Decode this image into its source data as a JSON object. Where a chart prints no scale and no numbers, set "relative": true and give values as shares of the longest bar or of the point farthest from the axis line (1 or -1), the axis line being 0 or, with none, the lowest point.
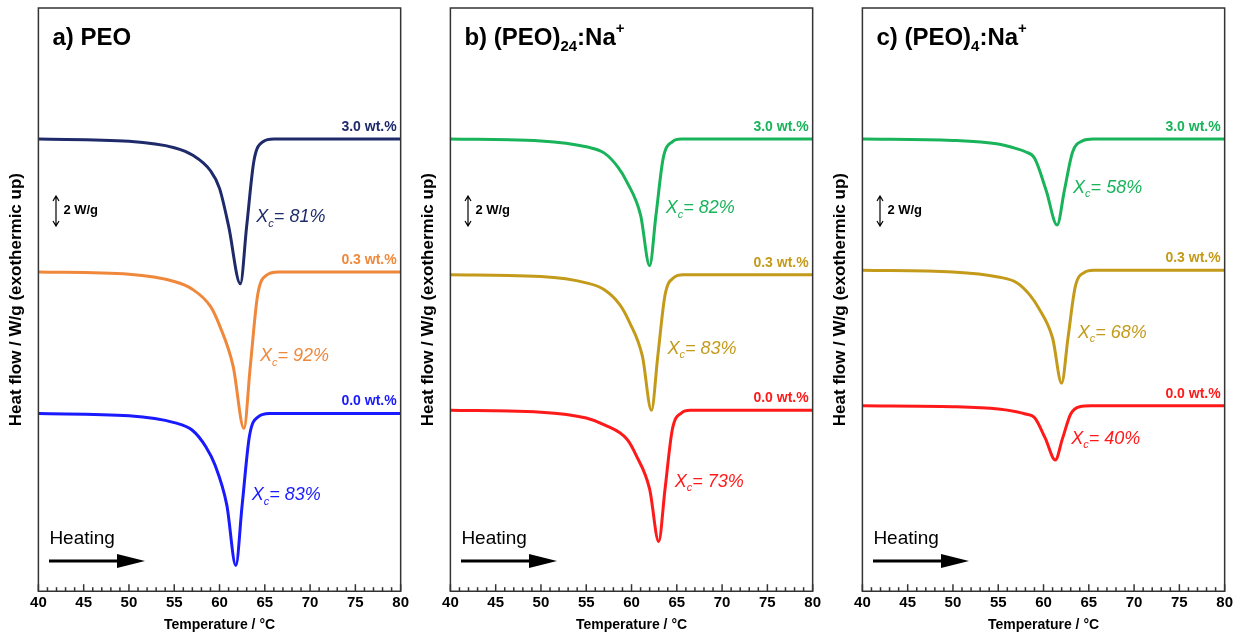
{
  "chart_data": [
    {
      "type": "line",
      "title": "a) PEO",
      "xlabel": "Temperature / °C",
      "ylabel": "Heat flow / W/g (exothermic up)",
      "relative": true,
      "xlim": [
        40,
        80
      ],
      "xticks": [
        40,
        {
          "value": 41,
          "label": null
        },
        {
          "value": 42,
          "label": null
        },
        {
          "value": 43,
          "label": null
        },
        {
          "value": 44,
          "label": null
        },
        45,
        {
          "value": 46,
          "label": null
        },
        {
          "value": 47,
          "label": null
        },
        {
          "value": 48,
          "label": null
        },
        {
          "value": 49,
          "label": null
        },
        50,
        {
          "value": 51,
          "label": null
        },
        {
          "value": 52,
          "label": null
        },
        {
          "value": 53,
          "label": null
        },
        {
          "value": 54,
          "label": null
        },
        55,
        {
          "value": 56,
          "label": null
        },
        {
          "value": 57,
          "label": null
        },
        {
          "value": 58,
          "label": null
        },
        {
          "value": 59,
          "label": null
        },
        60,
        {
          "value": 61,
          "label": null
        },
        {
          "value": 62,
          "label": null
        },
        {
          "value": 63,
          "label": null
        },
        {
          "value": 64,
          "label": null
        },
        65,
        {
          "value": 66,
          "label": null
        },
        {
          "value": 67,
          "label": null
        },
        {
          "value": 68,
          "label": null
        },
        {
          "value": 69,
          "label": null
        },
        70,
        {
          "value": 71,
          "label": null
        },
        {
          "value": 72,
          "label": null
        },
        {
          "value": 73,
          "label": null
        },
        {
          "value": 74,
          "label": null
        },
        75,
        {
          "value": 76,
          "label": null
        },
        {
          "value": 77,
          "label": null
        },
        {
          "value": 78,
          "label": null
        },
        {
          "value": 79,
          "label": null
        },
        80
      ],
      "series": [
        {
          "name": "3.0 wt.%",
          "color": "#1f2a6b",
          "x": [
            40,
            50,
            55,
            57,
            59,
            60,
            61,
            62.3,
            63,
            63.8,
            64.8,
            66,
            80
          ],
          "values": [
            1,
            0.995,
            0.981,
            0.965,
            0.93,
            0.891,
            0.808,
            0.68,
            0.808,
            0.952,
            0.994,
            1,
            1
          ]
        },
        {
          "name": "0.3 wt.%",
          "color": "#f0883c",
          "x": [
            40,
            50,
            55,
            57,
            59,
            60,
            61.5,
            62.7,
            63.4,
            64.2,
            65.2,
            66.5,
            80
          ],
          "values": [
            0.706,
            0.701,
            0.685,
            0.668,
            0.63,
            0.588,
            0.498,
            0.36,
            0.498,
            0.654,
            0.699,
            0.706,
            0.706
          ]
        },
        {
          "name": "0.0 wt.%",
          "color": "#1a1aff",
          "x": [
            40,
            50,
            55,
            57,
            58.5,
            59.5,
            60.8,
            61.8,
            62.5,
            63.3,
            64.3,
            65.5,
            80
          ],
          "values": [
            0.393,
            0.388,
            0.373,
            0.356,
            0.319,
            0.279,
            0.191,
            0.057,
            0.191,
            0.343,
            0.386,
            0.393,
            0.393
          ]
        }
      ],
      "annotations": [
        "X$_{c}$= 81%",
        "X$_{c}$= 92%",
        "X$_{c}$= 83%",
        "2 W/g",
        "Heating"
      ]
    },
    {
      "type": "line",
      "title": "b) (PEO)$_{24}$:Na$^{+}$",
      "xlabel": "Temperature / °C",
      "ylabel": "Heat flow / W/g (exothermic up)",
      "relative": true,
      "xlim": [
        40,
        80
      ],
      "xticks": [
        40,
        {
          "value": 41,
          "label": null
        },
        {
          "value": 42,
          "label": null
        },
        {
          "value": 43,
          "label": null
        },
        {
          "value": 44,
          "label": null
        },
        45,
        {
          "value": 46,
          "label": null
        },
        {
          "value": 47,
          "label": null
        },
        {
          "value": 48,
          "label": null
        },
        {
          "value": 49,
          "label": null
        },
        50,
        {
          "value": 51,
          "label": null
        },
        {
          "value": 52,
          "label": null
        },
        {
          "value": 53,
          "label": null
        },
        {
          "value": 54,
          "label": null
        },
        55,
        {
          "value": 56,
          "label": null
        },
        {
          "value": 57,
          "label": null
        },
        {
          "value": 58,
          "label": null
        },
        {
          "value": 59,
          "label": null
        },
        60,
        {
          "value": 61,
          "label": null
        },
        {
          "value": 62,
          "label": null
        },
        {
          "value": 63,
          "label": null
        },
        {
          "value": 64,
          "label": null
        },
        65,
        {
          "value": 66,
          "label": null
        },
        {
          "value": 67,
          "label": null
        },
        {
          "value": 68,
          "label": null
        },
        {
          "value": 69,
          "label": null
        },
        70,
        {
          "value": 71,
          "label": null
        },
        {
          "value": 72,
          "label": null
        },
        {
          "value": 73,
          "label": null
        },
        {
          "value": 74,
          "label": null
        },
        75,
        {
          "value": 76,
          "label": null
        },
        {
          "value": 77,
          "label": null
        },
        {
          "value": 78,
          "label": null
        },
        {
          "value": 79,
          "label": null
        },
        80
      ],
      "series": [
        {
          "name": "3.0 wt.%",
          "color": "#19b35a",
          "x": [
            40,
            50,
            55,
            57,
            58.5,
            59.5,
            61,
            62,
            62.7,
            63.5,
            64.5,
            65.5,
            80
          ],
          "values": [
            1,
            0.996,
            0.983,
            0.969,
            0.938,
            0.905,
            0.832,
            0.72,
            0.832,
            0.958,
            0.994,
            1,
            1
          ]
        },
        {
          "name": "0.3 wt.%",
          "color": "#c49a1a",
          "x": [
            40,
            50,
            55,
            57,
            58.7,
            59.7,
            61.2,
            62.2,
            62.9,
            63.7,
            64.7,
            65.7,
            80
          ],
          "values": [
            0.7,
            0.696,
            0.682,
            0.667,
            0.634,
            0.598,
            0.52,
            0.4,
            0.52,
            0.655,
            0.694,
            0.7,
            0.7
          ]
        },
        {
          "name": "0.0 wt.%",
          "color": "#ff1a1a",
          "x": [
            40,
            50,
            55,
            57,
            59.5,
            60.5,
            62,
            63,
            63.7,
            64.5,
            65.5,
            66.5,
            80
          ],
          "values": [
            0.4,
            0.396,
            0.383,
            0.368,
            0.336,
            0.301,
            0.226,
            0.11,
            0.226,
            0.357,
            0.394,
            0.4,
            0.4
          ]
        }
      ],
      "annotations": [
        "X$_{c}$= 82%",
        "X$_{c}$= 83%",
        "X$_{c}$= 73%",
        "2 W/g",
        "Heating"
      ]
    },
    {
      "type": "line",
      "title": "c) (PEO)$_{4}$:Na$^{+}$",
      "xlabel": "Temperature / °C",
      "ylabel": "Heat flow / W/g (exothermic up)",
      "relative": true,
      "xlim": [
        40,
        80
      ],
      "xticks": [
        40,
        {
          "value": 41,
          "label": null
        },
        {
          "value": 42,
          "label": null
        },
        {
          "value": 43,
          "label": null
        },
        {
          "value": 44,
          "label": null
        },
        45,
        {
          "value": 46,
          "label": null
        },
        {
          "value": 47,
          "label": null
        },
        {
          "value": 48,
          "label": null
        },
        {
          "value": 49,
          "label": null
        },
        50,
        {
          "value": 51,
          "label": null
        },
        {
          "value": 52,
          "label": null
        },
        {
          "value": 53,
          "label": null
        },
        {
          "value": 54,
          "label": null
        },
        55,
        {
          "value": 56,
          "label": null
        },
        {
          "value": 57,
          "label": null
        },
        {
          "value": 58,
          "label": null
        },
        {
          "value": 59,
          "label": null
        },
        60,
        {
          "value": 61,
          "label": null
        },
        {
          "value": 62,
          "label": null
        },
        {
          "value": 63,
          "label": null
        },
        {
          "value": 64,
          "label": null
        },
        65,
        {
          "value": 66,
          "label": null
        },
        {
          "value": 67,
          "label": null
        },
        {
          "value": 68,
          "label": null
        },
        {
          "value": 69,
          "label": null
        },
        70,
        {
          "value": 71,
          "label": null
        },
        {
          "value": 72,
          "label": null
        },
        {
          "value": 73,
          "label": null
        },
        {
          "value": 74,
          "label": null
        },
        75,
        {
          "value": 76,
          "label": null
        },
        {
          "value": 77,
          "label": null
        },
        {
          "value": 78,
          "label": null
        },
        {
          "value": 79,
          "label": null
        },
        80
      ],
      "series": [
        {
          "name": "3.0 wt.%",
          "color": "#19b35a",
          "x": [
            40,
            50,
            55,
            57,
            58,
            59,
            60.3,
            61.5,
            62.3,
            63.2,
            64.3,
            65.5,
            80
          ],
          "values": [
            1,
            0.997,
            0.989,
            0.979,
            0.972,
            0.958,
            0.886,
            0.81,
            0.886,
            0.971,
            0.996,
            1,
            1
          ]
        },
        {
          "name": "0.3 wt.%",
          "color": "#c49a1a",
          "x": [
            40,
            50,
            55,
            57,
            58.5,
            59.5,
            61,
            62,
            62.7,
            63.5,
            64.5,
            65.5,
            80
          ],
          "values": [
            0.71,
            0.706,
            0.695,
            0.683,
            0.655,
            0.625,
            0.56,
            0.46,
            0.56,
            0.673,
            0.705,
            0.71,
            0.71
          ]
        },
        {
          "name": "0.0 wt.%",
          "color": "#ff1a1a",
          "x": [
            40,
            50,
            55,
            57,
            58,
            59,
            60.2,
            61.3,
            62.1,
            63,
            64,
            65.3,
            80
          ],
          "values": [
            0.41,
            0.408,
            0.403,
            0.397,
            0.392,
            0.384,
            0.338,
            0.29,
            0.338,
            0.392,
            0.408,
            0.41,
            0.41
          ]
        }
      ],
      "annotations": [
        "X$_{c}$= 58%",
        "X$_{c}$= 68%",
        "X$_{c}$= 40%",
        "2 W/g",
        "Heating"
      ]
    }
  ]
}
